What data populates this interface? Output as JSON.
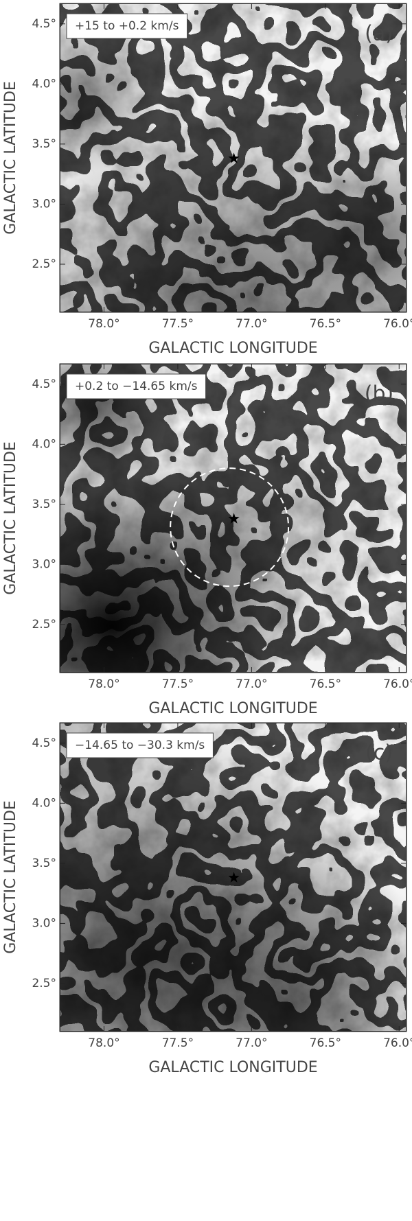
{
  "chart_data": [
    {
      "type": "image",
      "panel_label": "(a)",
      "annotation": "+15 to +0.2 km/s",
      "x_label": "GALACTIC LONGITUDE",
      "y_label": "GALACTIC LATITUDE",
      "xlim": [
        78.3,
        75.95
      ],
      "ylim": [
        2.1,
        4.67
      ],
      "xticks": [
        {
          "value": 78.0,
          "label": "78.0°"
        },
        {
          "value": 77.5,
          "label": "77.5°"
        },
        {
          "value": 77.0,
          "label": "77.0°"
        },
        {
          "value": 76.5,
          "label": "76.5°"
        },
        {
          "value": 76.0,
          "label": "76.0°"
        }
      ],
      "yticks": [
        {
          "value": 2.5,
          "label": "2.5°"
        },
        {
          "value": 3.0,
          "label": "3.0°"
        },
        {
          "value": 3.5,
          "label": "3.5°"
        },
        {
          "value": 4.0,
          "label": "4.0°"
        },
        {
          "value": 4.5,
          "label": "4.5°"
        }
      ],
      "star": [
        77.12,
        3.38
      ]
    },
    {
      "type": "image",
      "panel_label": "(b)",
      "annotation": "+0.2 to −14.65 km/s",
      "x_label": "GALACTIC LONGITUDE",
      "y_label": "GALACTIC LATITUDE",
      "xlim": [
        78.3,
        75.95
      ],
      "ylim": [
        2.1,
        4.67
      ],
      "xticks": [
        {
          "value": 78.0,
          "label": "78.0°"
        },
        {
          "value": 77.5,
          "label": "77.5°"
        },
        {
          "value": 77.0,
          "label": "77.0°"
        },
        {
          "value": 76.5,
          "label": "76.5°"
        },
        {
          "value": 76.0,
          "label": "76.0°"
        }
      ],
      "yticks": [
        {
          "value": 2.5,
          "label": "2.5°"
        },
        {
          "value": 3.0,
          "label": "3.0°"
        },
        {
          "value": 3.5,
          "label": "3.5°"
        },
        {
          "value": 4.0,
          "label": "4.0°"
        },
        {
          "value": 4.5,
          "label": "4.5°"
        }
      ],
      "star": [
        77.12,
        3.38
      ],
      "circle": {
        "center": [
          77.15,
          3.31
        ],
        "radius": 0.4
      }
    },
    {
      "type": "image",
      "panel_label": "(c)",
      "annotation": "−14.65 to −30.3 km/s",
      "x_label": "GALACTIC LONGITUDE",
      "y_label": "GALACTIC LATITUDE",
      "xlim": [
        78.3,
        75.95
      ],
      "ylim": [
        2.1,
        4.67
      ],
      "xticks": [
        {
          "value": 78.0,
          "label": "78.0°"
        },
        {
          "value": 77.5,
          "label": "77.5°"
        },
        {
          "value": 77.0,
          "label": "77.0°"
        },
        {
          "value": 76.5,
          "label": "76.5°"
        },
        {
          "value": 76.0,
          "label": "76.0°"
        }
      ],
      "yticks": [
        {
          "value": 2.5,
          "label": "2.5°"
        },
        {
          "value": 3.0,
          "label": "3.0°"
        },
        {
          "value": 3.5,
          "label": "3.5°"
        },
        {
          "value": 4.0,
          "label": "4.0°"
        },
        {
          "value": 4.5,
          "label": "4.5°"
        }
      ],
      "star": [
        77.12,
        3.38
      ]
    }
  ]
}
